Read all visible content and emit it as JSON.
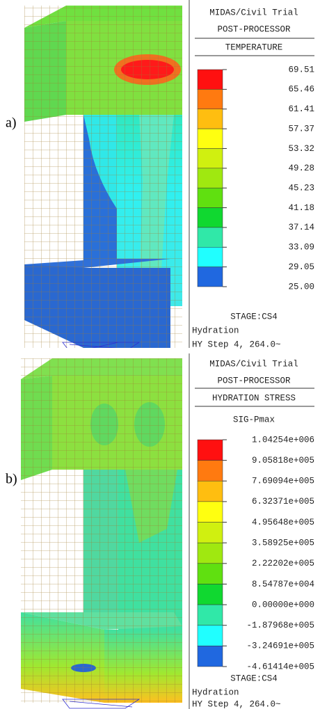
{
  "panels": [
    {
      "label": "a)",
      "header": [
        "MIDAS/Civil Trial",
        "POST-PROCESSOR"
      ],
      "result": "TEMPERATURE",
      "legend": [
        "69.51",
        "65.46",
        "61.41",
        "57.37",
        "53.32",
        "49.28",
        "45.23",
        "41.18",
        "37.14",
        "33.09",
        "29.05",
        "25.00"
      ],
      "colors": [
        "#ff1010",
        "#ff7a10",
        "#ffbe10",
        "#ffff10",
        "#d0f010",
        "#a0e810",
        "#60e010",
        "#10d830",
        "#30e8a8",
        "#20ffff",
        "#2068e0"
      ],
      "stage": "STAGE:CS4",
      "footer": [
        "Hydration",
        "HY Step 4, 264.0~"
      ]
    },
    {
      "label": "b)",
      "header": [
        "MIDAS/Civil Trial",
        "POST-PROCESSOR"
      ],
      "result": "HYDRATION STRESS",
      "component": "SIG-Pmax",
      "legend": [
        "1.04254e+006",
        "9.05818e+005",
        "7.69094e+005",
        "6.32371e+005",
        "4.95648e+005",
        "3.58925e+005",
        "2.22202e+005",
        "8.54787e+004",
        "0.00000e+000",
        "-1.87968e+005",
        "-3.24691e+005",
        "-4.61414e+005"
      ],
      "colors": [
        "#ff1010",
        "#ff7a10",
        "#ffbe10",
        "#ffff10",
        "#d0f010",
        "#a0e810",
        "#60e010",
        "#10d830",
        "#30e8a8",
        "#20ffff",
        "#2068e0"
      ],
      "stage": "STAGE:CS4",
      "footer": [
        "Hydration",
        "HY Step 4, 264.0~"
      ]
    }
  ]
}
